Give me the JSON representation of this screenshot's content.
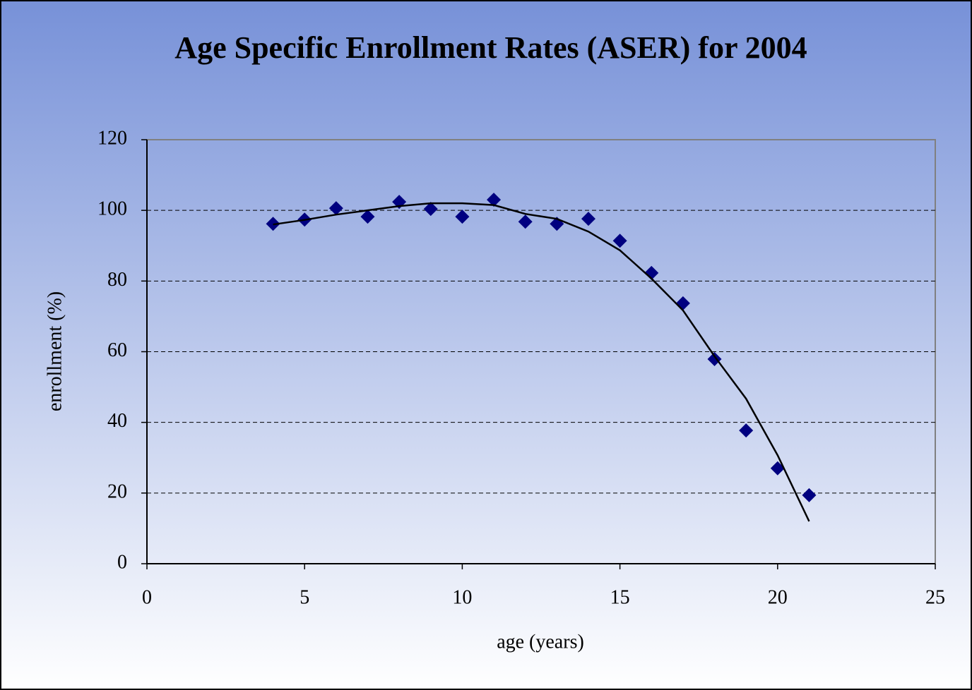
{
  "chart_data": {
    "type": "scatter",
    "title": "Age Specific Enrollment Rates (ASER) for 2004",
    "x_label": "age (years)",
    "y_label": "enrollment (%)",
    "x": [
      4,
      5,
      6,
      7,
      8,
      9,
      10,
      11,
      12,
      13,
      14,
      15,
      16,
      17,
      18,
      19,
      20,
      21
    ],
    "series": [
      {
        "color": "#000080",
        "marker": "diamond",
        "values": [
          96.2,
          97.4,
          100.6,
          98.2,
          102.4,
          100.4,
          98.2,
          103.0,
          96.8,
          96.2,
          97.6,
          91.4,
          82.3,
          73.7,
          57.9,
          37.7,
          27.0,
          19.4
        ]
      },
      {
        "color": "#000000",
        "marker": "line",
        "values": [
          96,
          97.3,
          98.8,
          100,
          101.2,
          102,
          102,
          101.5,
          99,
          97.6,
          94,
          88.7,
          80.7,
          71.7,
          58.7,
          46.7,
          30.7,
          12
        ]
      }
    ],
    "xlim": [
      0,
      25
    ],
    "xticks": [
      0,
      5,
      10,
      15,
      20,
      25
    ],
    "ylim": [
      0,
      120
    ],
    "yticks": [
      0,
      20,
      40,
      60,
      80,
      100,
      120
    ],
    "grid": true
  }
}
